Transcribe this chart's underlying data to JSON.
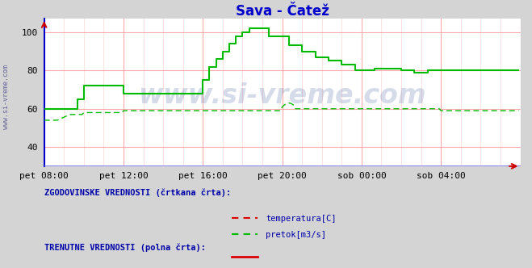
{
  "title": "Sava - Čatež",
  "title_color": "#0000cc",
  "bg_color": "#d4d4d4",
  "plot_bg_color": "#ffffff",
  "grid_color": "#ffaaaa",
  "xlim": [
    0,
    288
  ],
  "ylim": [
    30,
    107
  ],
  "yticks": [
    40,
    60,
    80,
    100
  ],
  "xtick_labels": [
    "pet 08:00",
    "pet 12:00",
    "pet 16:00",
    "pet 20:00",
    "sob 00:00",
    "sob 04:00"
  ],
  "xtick_positions": [
    0,
    48,
    96,
    144,
    192,
    240
  ],
  "watermark": "www.si-vreme.com",
  "watermark_color": "#1a3a8a",
  "watermark_alpha": 0.18,
  "side_label": "www.si-vreme.com",
  "legend_text1": "ZGODOVINSKE VREDNOSTI (črtkana črta):",
  "legend_text2": "TRENUTNE VREDNOSTI (polna črta):",
  "legend_item_temp": "temperatura[C]",
  "legend_item_pretok": "pretok[m3/s]",
  "temp_color": "#dd0000",
  "pretok_color": "#00bb00",
  "axis_line_color": "#0000cc",
  "arrow_color": "#cc0000",
  "bottom_line_color": "#8888ff"
}
